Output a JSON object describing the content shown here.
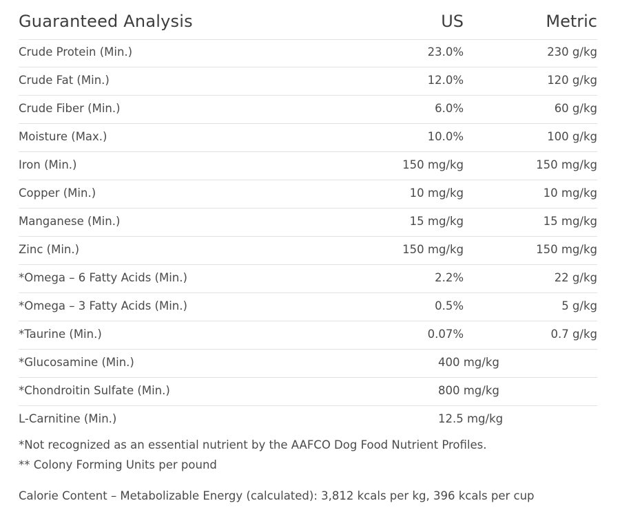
{
  "table": {
    "title": "Guaranteed Analysis",
    "col_us": "US",
    "col_metric": "Metric",
    "rows": [
      {
        "name": "Crude Protein (Min.)",
        "us": "23.0%",
        "metric": "230 g/kg"
      },
      {
        "name": "Crude Fat (Min.)",
        "us": "12.0%",
        "metric": "120 g/kg"
      },
      {
        "name": "Crude Fiber (Min.)",
        "us": "6.0%",
        "metric": "60 g/kg"
      },
      {
        "name": "Moisture (Max.)",
        "us": "10.0%",
        "metric": "100 g/kg"
      },
      {
        "name": "Iron (Min.)",
        "us": "150 mg/kg",
        "metric": "150 mg/kg"
      },
      {
        "name": "Copper (Min.)",
        "us": "10 mg/kg",
        "metric": "10 mg/kg"
      },
      {
        "name": "Manganese (Min.)",
        "us": "15 mg/kg",
        "metric": "15 mg/kg"
      },
      {
        "name": "Zinc (Min.)",
        "us": "150 mg/kg",
        "metric": "150 mg/kg"
      },
      {
        "name": "*Omega – 6 Fatty Acids (Min.)",
        "us": "2.2%",
        "metric": "22 g/kg"
      },
      {
        "name": "*Omega – 3 Fatty Acids (Min.)",
        "us": "0.5%",
        "metric": "5 g/kg"
      },
      {
        "name": "*Taurine (Min.)",
        "us": "0.07%",
        "metric": "0.7 g/kg"
      },
      {
        "name": "*Glucosamine (Min.)",
        "value": "400 mg/kg"
      },
      {
        "name": "*Chondroitin Sulfate (Min.)",
        "value": "800 mg/kg"
      },
      {
        "name": "L-Carnitine (Min.)",
        "value": "12.5 mg/kg"
      }
    ]
  },
  "notes": [
    "*Not recognized as an essential nutrient by the AAFCO Dog Food Nutrient Profiles.",
    "** Colony Forming Units per pound"
  ],
  "calorie_content": "Calorie Content – Metabolizable Energy (calculated): 3,812 kcals per kg, 396 kcals per cup"
}
